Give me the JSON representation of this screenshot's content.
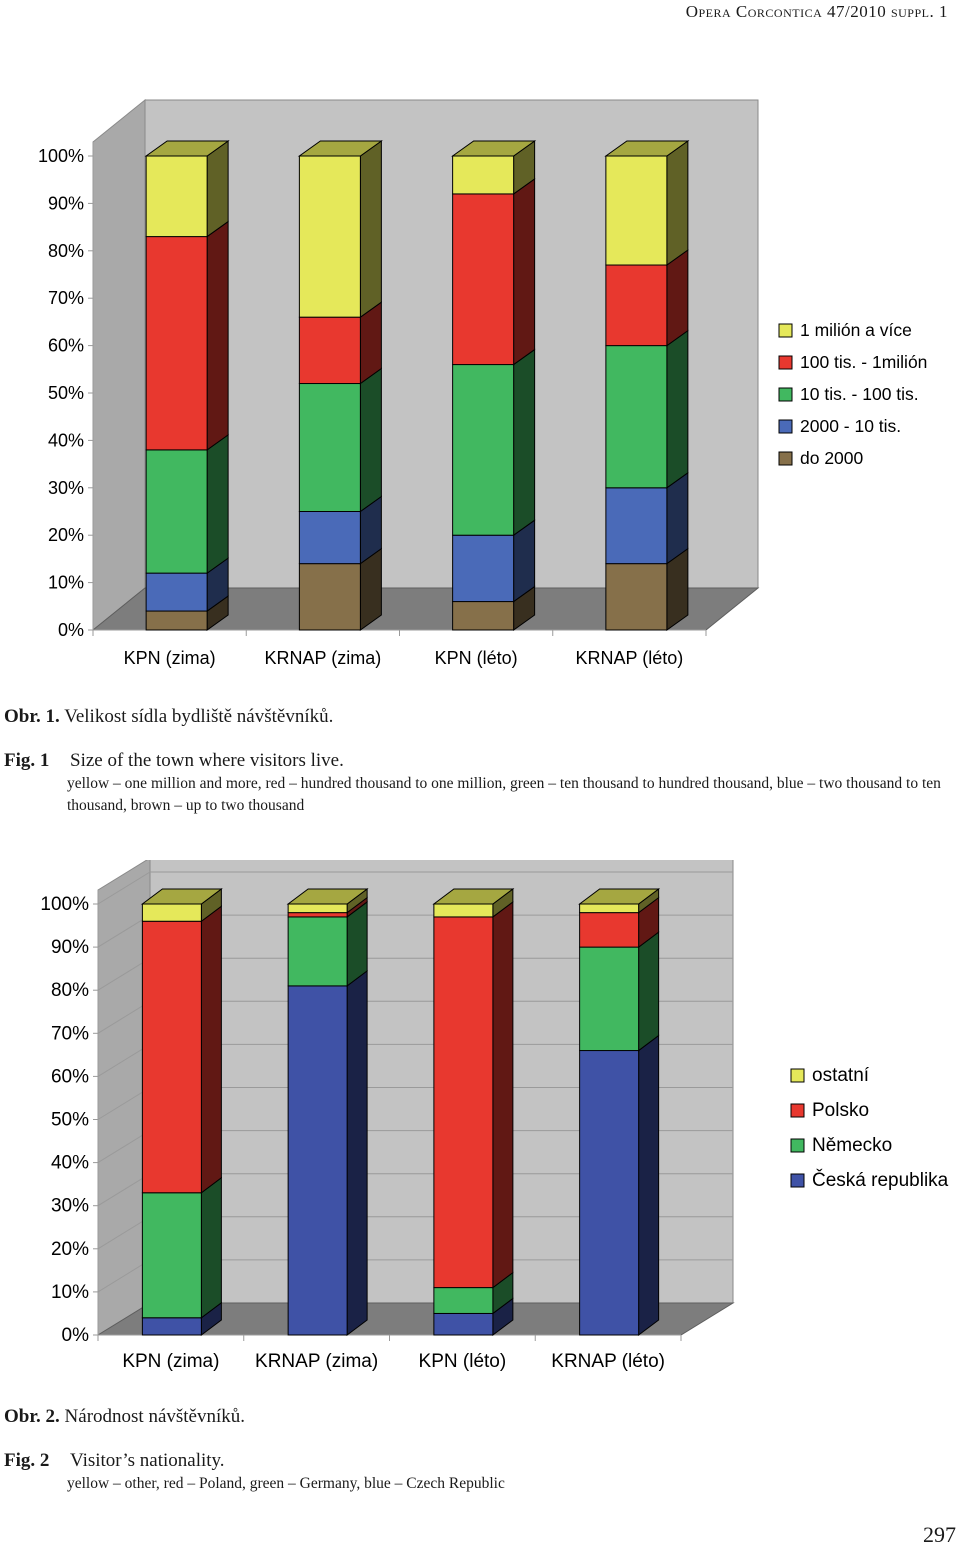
{
  "header": {
    "running_head": "Opera Corcontica 47/2010 suppl. 1"
  },
  "figure1": {
    "caption_cz_label": "Obr. 1.",
    "caption_cz_text": "Velikost sídla bydliště návštěvníků.",
    "caption_en_label": "Fig. 1",
    "caption_en_text": "Size of the town where visitors live.",
    "note": "yellow – one million and more, red – hundred thousand to one million, green – ten thousand to hundred thousand, blue – two thousand to ten thousand, brown – up to two thousand",
    "chart_data": {
      "type": "bar",
      "stacked": true,
      "three_d": true,
      "categories": [
        "KPN (zima)",
        "KRNAP (zima)",
        "KPN (léto)",
        "KRNAP (léto)"
      ],
      "y_ticks": [
        "0%",
        "10%",
        "20%",
        "30%",
        "40%",
        "50%",
        "60%",
        "70%",
        "80%",
        "90%",
        "100%"
      ],
      "ylim": [
        0,
        100
      ],
      "grid": false,
      "legend_position": "right",
      "series": [
        {
          "name": "do 2000",
          "color": "#86704a",
          "values": [
            4,
            14,
            6,
            14
          ]
        },
        {
          "name": "2000 - 10 tis.",
          "color": "#4a6ab8",
          "values": [
            8,
            11,
            14,
            16
          ]
        },
        {
          "name": "10 tis. - 100 tis.",
          "color": "#41b860",
          "values": [
            26,
            27,
            36,
            30
          ]
        },
        {
          "name": "100 tis. - 1milión",
          "color": "#e8382f",
          "values": [
            45,
            14,
            36,
            17
          ]
        },
        {
          "name": "1 milión a více",
          "color": "#e5e85a",
          "values": [
            17,
            34,
            8,
            23
          ]
        }
      ]
    }
  },
  "figure2": {
    "caption_cz_label": "Obr. 2.",
    "caption_cz_text": "Národnost návštěvníků.",
    "caption_en_label": "Fig. 2",
    "caption_en_text": "Visitor’s nationality.",
    "note": "yellow – other, red – Poland, green – Germany, blue – Czech Republic",
    "chart_data": {
      "type": "bar",
      "stacked": true,
      "three_d": true,
      "categories": [
        "KPN (zima)",
        "KRNAP (zima)",
        "KPN (léto)",
        "KRNAP (léto)"
      ],
      "y_ticks": [
        "0%",
        "10%",
        "20%",
        "30%",
        "40%",
        "50%",
        "60%",
        "70%",
        "80%",
        "90%",
        "100%"
      ],
      "ylim": [
        0,
        100
      ],
      "grid": true,
      "legend_position": "right",
      "series": [
        {
          "name": "Česká republika",
          "color": "#3f52a6",
          "values": [
            4,
            81,
            5,
            66
          ]
        },
        {
          "name": "Německo",
          "color": "#41b860",
          "values": [
            29,
            16,
            6,
            24
          ]
        },
        {
          "name": "Polsko",
          "color": "#e8382f",
          "values": [
            63,
            1,
            86,
            8
          ]
        },
        {
          "name": "ostatní",
          "color": "#e5e85a",
          "values": [
            4,
            2,
            3,
            2
          ]
        }
      ]
    }
  },
  "footer": {
    "page_number": "297"
  }
}
